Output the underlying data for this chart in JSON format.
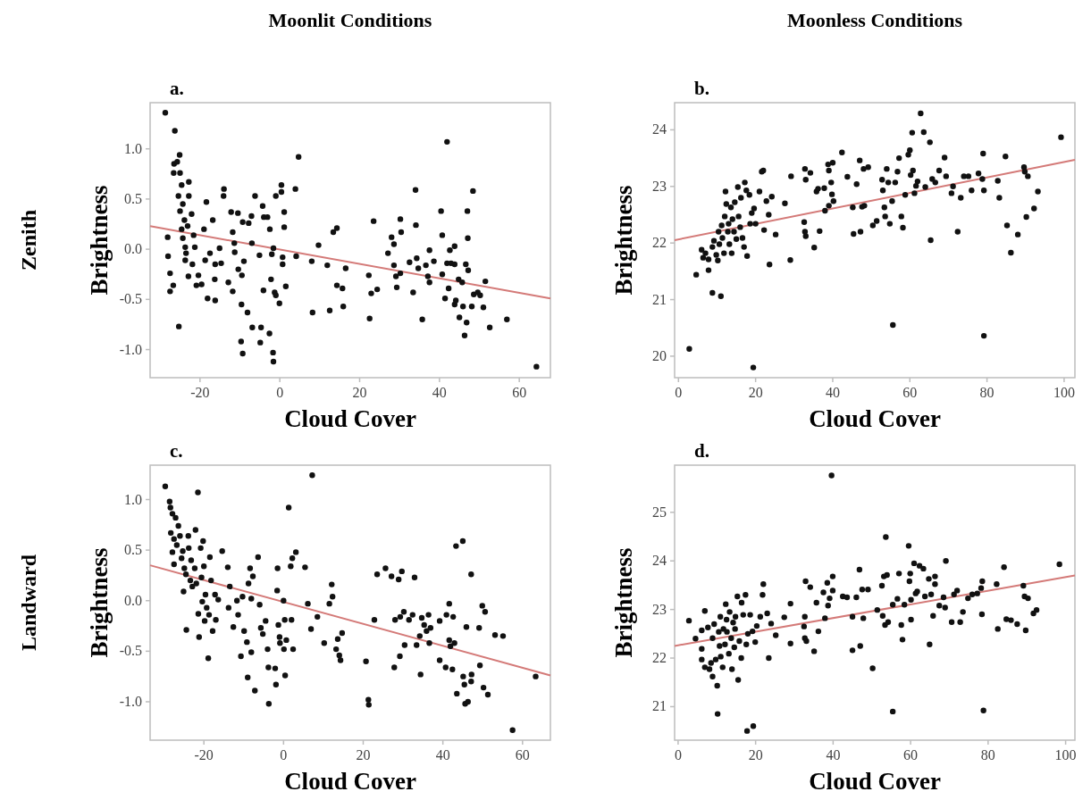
{
  "chart_data": [
    {
      "type": "scatter",
      "title": "a.",
      "xlabel": "Cloud Cover",
      "ylabel": "Brightness",
      "annotations": [
        "Moonlit Conditions",
        "Zenith"
      ],
      "marker": "circle",
      "xlim": [
        -32.5,
        67.8
      ],
      "ylim": [
        -1.28,
        1.46
      ],
      "xticks": [
        -20,
        0,
        20,
        40,
        60
      ],
      "yticks": [
        {
          "value": -1,
          "label": "-1.0"
        },
        {
          "value": -0.5,
          "label": "-0.5"
        },
        {
          "value": 0,
          "label": "0.0"
        },
        {
          "value": 0.5,
          "label": "0.5"
        },
        {
          "value": 1,
          "label": "1.0"
        }
      ],
      "series": [
        {
          "color": "#111111",
          "x": [
            -28.7,
            -26.3,
            -28.1,
            -28,
            -27.5,
            -27.5,
            -26.7,
            -25.3,
            -25.1,
            -26.5,
            -25.7,
            -26.6,
            -25,
            -24.6,
            -25.4,
            -24.3,
            -25,
            -23.9,
            -24.6,
            -24.3,
            -23.7,
            -23.1,
            -23.5,
            -23.7,
            -22.8,
            -22.8,
            -22.1,
            -21.6,
            -21.3,
            -22.9,
            -21.9,
            -20.9,
            -20.4,
            -19.6,
            -19,
            -18.4,
            -18.7,
            -18.1,
            -17.5,
            -16.8,
            -16.2,
            -16.3,
            -16.2,
            -15.1,
            -14.7,
            -14,
            -14.1,
            -12.9,
            -12.2,
            -11.8,
            -11.4,
            -11.3,
            -11.8,
            -10.4,
            -10.5,
            -9.5,
            -9.6,
            -9.7,
            -9.3,
            -9,
            -9.3,
            -8.1,
            -7.8,
            -7.1,
            -7,
            -6.9,
            -6.2,
            -5.1,
            -4.9,
            -4.7,
            -4.3,
            -4.1,
            -4,
            -3.1,
            -2.6,
            -2.5,
            -2.2,
            -2,
            -1.7,
            -1.6,
            -1.6,
            -1.3,
            -1,
            -1,
            -0.1,
            0.4,
            0.4,
            0.7,
            0.7,
            1.1,
            1.1,
            1.5,
            3.9,
            4.1,
            4.7,
            8,
            8.2,
            9.7,
            11.9,
            12.5,
            13.4,
            14.3,
            14.3,
            15.7,
            15.9,
            16.5,
            22.3,
            22.5,
            22.9,
            23.5,
            24.4,
            27.1,
            28,
            28.6,
            28.6,
            29.1,
            29.3,
            30.2,
            30.4,
            30.2,
            32.5,
            33.4,
            34,
            34.1,
            34.3,
            34.7,
            35.7,
            36.6,
            37.1,
            37.5,
            37.5,
            38.6,
            40.4,
            40.7,
            40.7,
            41.4,
            41.9,
            41.9,
            42.3,
            42.6,
            42.9,
            43.8,
            43.8,
            43.8,
            44.1,
            44.8,
            45,
            45.7,
            45.9,
            46.3,
            46.6,
            46.8,
            47,
            47.1,
            47.2,
            48.1,
            48.4,
            48.6,
            49.6,
            50.2,
            51,
            51.5,
            52.6,
            56.9,
            64.3
          ],
          "values": [
            1.36,
            1.18,
            0.12,
            -0.07,
            -0.24,
            -0.42,
            -0.36,
            -0.77,
            0.94,
            0.85,
            0.87,
            0.76,
            0.76,
            0.64,
            0.53,
            0.45,
            0.38,
            0.29,
            0.2,
            0.11,
            0.02,
            0.23,
            -0.04,
            -0.11,
            0.67,
            0.53,
            0.35,
            0.14,
            0.02,
            -0.27,
            -0.15,
            -0.36,
            -0.26,
            -0.35,
            0.2,
            0.47,
            -0.11,
            -0.49,
            -0.04,
            0.29,
            -0.15,
            -0.3,
            -0.51,
            0.01,
            -0.14,
            0.6,
            0.53,
            -0.33,
            0.37,
            0.17,
            0.06,
            -0.03,
            -0.42,
            -0.2,
            0.36,
            -0.26,
            -0.55,
            -0.92,
            -1.04,
            -0.12,
            0.27,
            -0.63,
            0.26,
            0.33,
            0.06,
            -0.78,
            0.53,
            -0.06,
            -0.93,
            -0.78,
            0.43,
            -0.41,
            0.32,
            0.32,
            -0.84,
            0.2,
            -0.3,
            -0.05,
            -1.03,
            -1.12,
            0.01,
            -0.43,
            -0.46,
            0.53,
            -0.54,
            0.64,
            0.57,
            -0.15,
            -0.08,
            0.37,
            0.22,
            -0.37,
            0.6,
            -0.07,
            0.92,
            -0.12,
            -0.63,
            0.04,
            -0.16,
            -0.61,
            0.17,
            0.21,
            -0.36,
            -0.39,
            -0.57,
            -0.19,
            -0.26,
            -0.69,
            -0.44,
            0.28,
            -0.4,
            -0.04,
            0.12,
            0.05,
            -0.16,
            -0.27,
            -0.38,
            0.3,
            0.17,
            -0.24,
            -0.13,
            -0.43,
            0.59,
            0.24,
            -0.09,
            -0.19,
            -0.7,
            -0.16,
            -0.27,
            -0.01,
            -0.33,
            -0.12,
            0.38,
            0.14,
            -0.25,
            -0.49,
            1.07,
            -0.14,
            -0.39,
            -0.01,
            -0.14,
            0.03,
            -0.15,
            -0.55,
            -0.51,
            -0.3,
            -0.68,
            -0.33,
            -0.57,
            -0.86,
            -0.15,
            -0.73,
            0.38,
            0.11,
            -0.21,
            -0.57,
            0.58,
            -0.45,
            -0.43,
            -0.46,
            -0.58,
            -0.32,
            -0.78,
            -0.7,
            -1.17
          ]
        },
        {
          "type": "line",
          "color": "#d47a78",
          "line_style": "solid",
          "marker": "none",
          "x": [
            -32.5,
            67.8
          ],
          "values": [
            0.23,
            -0.49
          ]
        }
      ]
    },
    {
      "type": "scatter",
      "title": "b.",
      "xlabel": "Cloud Cover",
      "ylabel": "Brightness",
      "annotations": [
        "Moonless Conditions"
      ],
      "marker": "circle",
      "xlim": [
        -1,
        102.8
      ],
      "ylim": [
        19.62,
        24.48
      ],
      "xticks": [
        0,
        20,
        40,
        60,
        80,
        100
      ],
      "yticks": [
        20,
        21,
        22,
        23,
        24
      ],
      "series": [
        {
          "color": "#111111",
          "x": [
            2.8,
            4.6,
            6,
            6.4,
            7,
            7.8,
            7.8,
            8.8,
            8.8,
            9.2,
            9.8,
            10.2,
            10.4,
            10.6,
            11,
            11.2,
            11.4,
            11.8,
            12,
            12.2,
            12.4,
            12.8,
            13,
            13.2,
            13.6,
            13.8,
            14,
            14.4,
            14.6,
            15,
            15.4,
            15.6,
            16,
            16.2,
            16.6,
            17,
            17.2,
            17.6,
            17.8,
            18.4,
            18.6,
            19,
            19.6,
            20,
            21,
            21.6,
            22,
            22.2,
            22.8,
            23.4,
            23.6,
            24.2,
            25.2,
            27.6,
            29,
            29.2,
            32.6,
            32.8,
            32.8,
            33,
            33,
            34.2,
            35.2,
            35.8,
            36.2,
            36.6,
            37.8,
            38,
            38.8,
            39,
            39,
            39.6,
            39.8,
            40,
            40.2,
            42.4,
            43.8,
            45.2,
            45.4,
            46.2,
            47,
            47.2,
            47.6,
            48,
            48.2,
            49.2,
            50.4,
            51.4,
            52.8,
            53,
            53.4,
            53.6,
            54,
            54.4,
            54.8,
            55.4,
            55.6,
            56.2,
            56.8,
            57.2,
            57.8,
            58.2,
            58.8,
            59.6,
            60,
            60.2,
            60.6,
            60.8,
            61.2,
            61.6,
            62,
            62.8,
            63.6,
            64,
            65.2,
            65.4,
            65.8,
            66.6,
            67.6,
            69,
            69.4,
            70.8,
            71.2,
            72.4,
            73.2,
            74,
            75.2,
            76,
            77.8,
            78.8,
            79,
            79.2,
            79.2,
            82.8,
            83.2,
            84.8,
            85.2,
            86.2,
            88,
            89.6,
            89.8,
            90.2,
            90.6,
            92.2,
            93.2,
            99.2,
            19.4
          ],
          "values": [
            20.13,
            21.44,
            21.88,
            21.74,
            21.82,
            21.52,
            21.71,
            21.12,
            21.93,
            22.04,
            21.79,
            21.69,
            22.2,
            21.98,
            21.06,
            22.31,
            22.09,
            21.82,
            22.47,
            22.91,
            22.69,
            22.2,
            22.34,
            21.98,
            22.63,
            21.82,
            22.42,
            22.2,
            22.72,
            22.07,
            22.99,
            22.47,
            22.28,
            22.8,
            22.09,
            21.93,
            23.07,
            22.93,
            21.77,
            22.85,
            22.34,
            22.53,
            22.61,
            22.34,
            22.91,
            23.26,
            23.28,
            22.23,
            22.74,
            22.5,
            21.62,
            22.82,
            22.15,
            22.7,
            21.7,
            23.18,
            22.37,
            22.2,
            23.31,
            23.12,
            22.12,
            23.24,
            21.92,
            22.91,
            22.96,
            22.21,
            22.97,
            22.57,
            23.39,
            23.28,
            22.66,
            23.07,
            22.86,
            23.42,
            22.74,
            23.6,
            23.17,
            22.63,
            22.16,
            23.04,
            23.46,
            22.2,
            22.64,
            23.31,
            22.66,
            23.34,
            22.31,
            22.39,
            23.12,
            22.93,
            22.63,
            22.47,
            23.31,
            23.07,
            22.34,
            22.74,
            20.55,
            23.07,
            23.26,
            23.5,
            22.47,
            22.27,
            22.85,
            23.56,
            23.64,
            23.2,
            23.95,
            23.28,
            22.88,
            23.01,
            23.09,
            24.29,
            23.96,
            22.99,
            23.78,
            22.05,
            23.13,
            23.07,
            23.28,
            23.51,
            23.18,
            22.88,
            23,
            22.2,
            22.8,
            23.18,
            23.18,
            22.93,
            23.23,
            23.13,
            23.58,
            22.93,
            20.36,
            23.1,
            22.8,
            23.53,
            22.31,
            21.83,
            22.15,
            23.34,
            23.26,
            22.46,
            23.18,
            22.61,
            22.91,
            23.87,
            19.8
          ]
        },
        {
          "type": "line",
          "color": "#d47a78",
          "line_style": "solid",
          "marker": "none",
          "x": [
            -1,
            102.8
          ],
          "values": [
            22.05,
            23.47
          ]
        }
      ]
    },
    {
      "type": "scatter",
      "title": "c.",
      "xlabel": "Cloud Cover",
      "ylabel": "Brightness",
      "annotations": [
        "Landward"
      ],
      "marker": "circle",
      "xlim": [
        -33.5,
        67
      ],
      "ylim": [
        -1.38,
        1.34
      ],
      "xticks": [
        -20,
        0,
        20,
        40,
        60
      ],
      "yticks": [
        {
          "value": -1,
          "label": "-1.0"
        },
        {
          "value": -0.5,
          "label": "-0.5"
        },
        {
          "value": 0,
          "label": "0.0"
        },
        {
          "value": 0.5,
          "label": "0.5"
        },
        {
          "value": 1,
          "label": "1.0"
        }
      ],
      "series": [
        {
          "color": "#111111",
          "x": [
            -29.7,
            -28.6,
            -28.4,
            -27.9,
            -27.1,
            -28.3,
            -27.5,
            -27.9,
            -26.8,
            -26.4,
            -26,
            -27.5,
            -25.6,
            -25.3,
            -24.9,
            -25.1,
            -24.5,
            -24.4,
            -23.9,
            -23.8,
            -23.4,
            -23.2,
            -22.9,
            -22.3,
            -22.1,
            -21.9,
            -21.5,
            -21.4,
            -21.2,
            -20.8,
            -20.6,
            -20.4,
            -20.2,
            -20,
            -19.8,
            -19.6,
            -19.3,
            -18.9,
            -18.7,
            -18.5,
            -18.2,
            -17.8,
            -17.2,
            -17,
            -16.4,
            -15.4,
            -14,
            -13.8,
            -13.5,
            -12.6,
            -11.7,
            -11.4,
            -10.7,
            -10.3,
            -9.9,
            -9.2,
            -9,
            -8.8,
            -8.4,
            -8.1,
            -8.1,
            -7.7,
            -7.2,
            -6.4,
            -6,
            -5.7,
            -5.2,
            -4.5,
            -4,
            -3.8,
            -3.7,
            -2.1,
            -1.9,
            -1.6,
            -1.5,
            -1.3,
            -1,
            -0.9,
            0,
            0.1,
            0.3,
            0.4,
            0.7,
            1.3,
            1.8,
            2,
            2.2,
            2.4,
            3.1,
            5.4,
            6.1,
            6.9,
            7.2,
            8.5,
            10.2,
            11.5,
            12.1,
            12.3,
            13.2,
            13.6,
            14,
            14.3,
            14.7,
            20.7,
            21.3,
            21.4,
            22.8,
            23.5,
            25.6,
            27.1,
            27.8,
            28,
            28.9,
            29.2,
            29.3,
            29.7,
            30.2,
            30.4,
            31.5,
            32.4,
            32.9,
            33.4,
            34.2,
            34.4,
            34.7,
            35.3,
            35.9,
            36.4,
            36.6,
            36.9,
            39.2,
            39.2,
            40.7,
            40.9,
            41.6,
            41.6,
            41.9,
            42.4,
            42.6,
            42.9,
            43.3,
            43.5,
            45,
            45.1,
            45.4,
            45.6,
            45.9,
            46.3,
            47.1,
            47.2,
            47.1,
            49.1,
            49.3,
            49.9,
            50.2,
            50.6,
            51.3,
            53.1,
            55.1,
            57.5,
            63.3
          ],
          "values": [
            1.13,
            0.98,
            0.92,
            0.86,
            0.82,
            0.67,
            0.61,
            0.48,
            0.55,
            0.74,
            0.64,
            0.36,
            0.42,
            0.49,
            0.32,
            0.09,
            0.26,
            -0.29,
            0.64,
            0.52,
            0.2,
            0.4,
            0.14,
            0.32,
            0.7,
            0.17,
            1.07,
            -0.13,
            -0.36,
            0.52,
            0.23,
            -0.01,
            0.59,
            0.34,
            -0.2,
            0.06,
            -0.07,
            -0.57,
            -0.14,
            0.43,
            0.2,
            -0.3,
            0.06,
            -0.19,
            0.01,
            0.49,
            0.33,
            -0.07,
            0.14,
            -0.26,
            0,
            -0.14,
            -0.55,
            0.04,
            -0.3,
            -0.41,
            -0.76,
            0.17,
            0.32,
            0.02,
            -0.51,
            0.24,
            -0.89,
            0.43,
            -0.04,
            -0.27,
            -0.33,
            -0.2,
            -0.48,
            -0.66,
            -1.02,
            -0.67,
            -0.83,
            0.1,
            0.32,
            -0.24,
            -0.36,
            -0.42,
            0,
            -0.48,
            -0.19,
            -0.74,
            -0.39,
            0.92,
            0.34,
            -0.19,
            0.42,
            -0.48,
            0.48,
            0.33,
            -0.03,
            -0.28,
            1.24,
            -0.16,
            -0.42,
            -0.03,
            0.16,
            0.04,
            -0.48,
            -0.38,
            -0.54,
            -0.59,
            -0.32,
            -0.6,
            -0.98,
            -1.03,
            -0.19,
            0.26,
            0.32,
            0.24,
            -0.66,
            -0.19,
            0.21,
            -0.55,
            -0.16,
            0.29,
            -0.11,
            -0.44,
            -0.19,
            -0.14,
            0.23,
            -0.44,
            -0.35,
            -0.73,
            -0.17,
            -0.24,
            -0.3,
            -0.14,
            -0.42,
            -0.27,
            -0.2,
            -0.59,
            -0.66,
            -0.14,
            -0.03,
            -0.39,
            -0.45,
            -0.68,
            -0.16,
            -0.42,
            0.54,
            -0.92,
            0.59,
            -0.75,
            -0.83,
            -1.02,
            -0.26,
            -1,
            0.26,
            -0.73,
            -0.8,
            -0.27,
            -0.64,
            -0.05,
            -0.86,
            -0.11,
            -0.93,
            -0.34,
            -0.35,
            -1.28,
            -0.75
          ]
        },
        {
          "type": "line",
          "color": "#d47a78",
          "line_style": "solid",
          "marker": "none",
          "x": [
            -33.5,
            67
          ],
          "values": [
            0.35,
            -0.74
          ]
        }
      ]
    },
    {
      "type": "scatter",
      "title": "d.",
      "xlabel": "Cloud Cover",
      "ylabel": "Brightness",
      "marker": "circle",
      "xlim": [
        -0.9,
        102.4
      ],
      "ylim": [
        20.31,
        25.97
      ],
      "xticks": [
        0,
        20,
        40,
        60,
        80,
        100
      ],
      "yticks": [
        21,
        22,
        23,
        24,
        25
      ],
      "series": [
        {
          "color": "#111111",
          "x": [
            2.8,
            4.5,
            6.1,
            6.1,
            6.1,
            6.9,
            6.9,
            7.7,
            8.1,
            8.5,
            8.9,
            8.9,
            9.3,
            9.7,
            10.1,
            10.2,
            10.5,
            10.7,
            10.9,
            11,
            11.5,
            11.7,
            12.1,
            12.3,
            12.5,
            12.6,
            13.1,
            13.3,
            13.7,
            13.9,
            14.2,
            14.5,
            14.7,
            14.8,
            15.3,
            15.5,
            15.8,
            16.3,
            16.4,
            16.8,
            17.4,
            17.6,
            17.8,
            18,
            18.6,
            19.2,
            19.4,
            19.9,
            20.3,
            21.2,
            21.8,
            22,
            23,
            23.4,
            24,
            25.2,
            27.4,
            29,
            29,
            32.5,
            32.7,
            32.7,
            32.9,
            33.1,
            34.1,
            35.1,
            35.7,
            36.2,
            37.5,
            37.9,
            38.5,
            38.7,
            39.1,
            39.6,
            39.9,
            39.9,
            42.5,
            43.6,
            45,
            45,
            46,
            46.8,
            47,
            47.5,
            47.8,
            49,
            50.2,
            51.4,
            52.6,
            52.8,
            53.1,
            53.4,
            53.6,
            53.9,
            54.2,
            55.4,
            55.4,
            56.6,
            57,
            57.6,
            57.9,
            58.4,
            59.5,
            59.7,
            59.9,
            60.1,
            60.1,
            60.9,
            61.3,
            61.7,
            62.3,
            63.3,
            63.7,
            64.7,
            64.9,
            65.3,
            65.8,
            66.3,
            66.3,
            67.4,
            68.5,
            68.9,
            69.1,
            70.6,
            71.2,
            72,
            72.8,
            73.5,
            74.8,
            75.9,
            77.2,
            78.2,
            78.4,
            78.5,
            78.8,
            82.2,
            82.5,
            84.1,
            84.7,
            85.9,
            87.5,
            89.1,
            89.4,
            89.7,
            90.3,
            91.7,
            92.5,
            98.4
          ],
          "values": [
            22.77,
            22.4,
            22.57,
            22.19,
            21.97,
            22.97,
            21.81,
            22.63,
            21.77,
            21.9,
            22.41,
            21.62,
            22.7,
            21.97,
            21.43,
            20.85,
            22.54,
            22.25,
            22.85,
            22.03,
            21.81,
            22.6,
            22.28,
            23.11,
            22.79,
            22.54,
            22.09,
            22.95,
            22.41,
            21.77,
            22.73,
            22.22,
            22.6,
            22.85,
            23.27,
            21.55,
            22.35,
            22,
            23.14,
            22.89,
            23.3,
            22.28,
            20.5,
            22.5,
            22.89,
            22.55,
            20.6,
            22.33,
            22.66,
            22.85,
            23.3,
            23.52,
            22.92,
            22,
            22.71,
            22.47,
            22.84,
            23.12,
            22.3,
            22.65,
            22.85,
            22.41,
            23.58,
            22.35,
            23.46,
            22.14,
            23.14,
            22.55,
            23.35,
            22.82,
            23.55,
            23.08,
            23.23,
            25.76,
            23.39,
            23.68,
            23.27,
            23.25,
            22.85,
            22.16,
            23.25,
            23.82,
            22.25,
            23.41,
            22.82,
            23.41,
            21.79,
            22.99,
            23.49,
            22.87,
            23.68,
            22.68,
            24.49,
            23.71,
            22.74,
            23.1,
            20.9,
            23.22,
            23.74,
            22.68,
            22.38,
            23.1,
            24.31,
            23.58,
            23.74,
            23.2,
            22.79,
            23.95,
            23.33,
            23.37,
            23.9,
            23.84,
            23.27,
            23.63,
            22.28,
            23.31,
            22.87,
            23.68,
            23.52,
            23.08,
            23.25,
            23.04,
            24,
            22.74,
            23.31,
            23.39,
            22.74,
            22.95,
            23.23,
            23.31,
            23.33,
            23.44,
            22.9,
            23.58,
            20.92,
            23.52,
            22.6,
            23.87,
            22.8,
            22.78,
            22.7,
            23.49,
            23.27,
            22.57,
            23.23,
            22.92,
            22.99,
            23.93
          ]
        },
        {
          "type": "line",
          "color": "#d47a78",
          "line_style": "solid",
          "marker": "none",
          "x": [
            -0.9,
            102.4
          ],
          "values": [
            22.25,
            23.7
          ]
        }
      ]
    }
  ]
}
